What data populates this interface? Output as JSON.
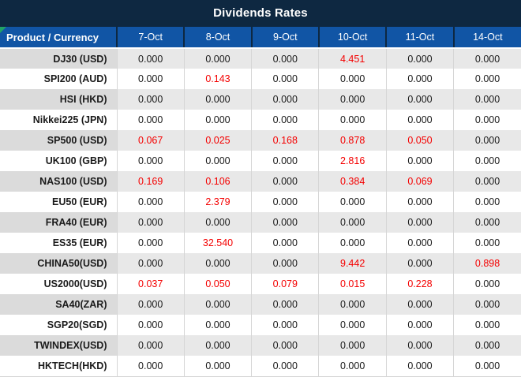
{
  "title": "Dividends Rates",
  "colors": {
    "title_bg": "#0E2841",
    "header_bg": "#1155A5",
    "row_gray": "#E8E8E8",
    "row_gray_first": "#DBDBDB",
    "row_white": "#FFFFFF",
    "value_red": "#F40000",
    "text_dark": "#1A1A1A",
    "grid_line": "#D6D6D6",
    "corner_flag": "#21A366"
  },
  "table": {
    "product_header": "Product / Currency",
    "date_headers": [
      "7-Oct",
      "8-Oct",
      "9-Oct",
      "10-Oct",
      "11-Oct",
      "14-Oct"
    ],
    "rows": [
      {
        "product": "DJ30 (USD)",
        "values": [
          "0.000",
          "0.000",
          "0.000",
          "4.451",
          "0.000",
          "0.000"
        ],
        "red": [
          3
        ]
      },
      {
        "product": "SPI200 (AUD)",
        "values": [
          "0.000",
          "0.143",
          "0.000",
          "0.000",
          "0.000",
          "0.000"
        ],
        "red": [
          1
        ]
      },
      {
        "product": "HSI (HKD)",
        "values": [
          "0.000",
          "0.000",
          "0.000",
          "0.000",
          "0.000",
          "0.000"
        ],
        "red": []
      },
      {
        "product": "Nikkei225 (JPN)",
        "values": [
          "0.000",
          "0.000",
          "0.000",
          "0.000",
          "0.000",
          "0.000"
        ],
        "red": []
      },
      {
        "product": "SP500 (USD)",
        "values": [
          "0.067",
          "0.025",
          "0.168",
          "0.878",
          "0.050",
          "0.000"
        ],
        "red": [
          0,
          1,
          2,
          3,
          4
        ]
      },
      {
        "product": "UK100 (GBP)",
        "values": [
          "0.000",
          "0.000",
          "0.000",
          "2.816",
          "0.000",
          "0.000"
        ],
        "red": [
          3
        ]
      },
      {
        "product": "NAS100 (USD)",
        "values": [
          "0.169",
          "0.106",
          "0.000",
          "0.384",
          "0.069",
          "0.000"
        ],
        "red": [
          0,
          1,
          3,
          4
        ]
      },
      {
        "product": "EU50 (EUR)",
        "values": [
          "0.000",
          "2.379",
          "0.000",
          "0.000",
          "0.000",
          "0.000"
        ],
        "red": [
          1
        ]
      },
      {
        "product": "FRA40 (EUR)",
        "values": [
          "0.000",
          "0.000",
          "0.000",
          "0.000",
          "0.000",
          "0.000"
        ],
        "red": []
      },
      {
        "product": "ES35 (EUR)",
        "values": [
          "0.000",
          "32.540",
          "0.000",
          "0.000",
          "0.000",
          "0.000"
        ],
        "red": [
          1
        ]
      },
      {
        "product": "CHINA50(USD)",
        "values": [
          "0.000",
          "0.000",
          "0.000",
          "9.442",
          "0.000",
          "0.898"
        ],
        "red": [
          3,
          5
        ]
      },
      {
        "product": "US2000(USD)",
        "values": [
          "0.037",
          "0.050",
          "0.079",
          "0.015",
          "0.228",
          "0.000"
        ],
        "red": [
          0,
          1,
          2,
          3,
          4
        ]
      },
      {
        "product": "SA40(ZAR)",
        "values": [
          "0.000",
          "0.000",
          "0.000",
          "0.000",
          "0.000",
          "0.000"
        ],
        "red": []
      },
      {
        "product": "SGP20(SGD)",
        "values": [
          "0.000",
          "0.000",
          "0.000",
          "0.000",
          "0.000",
          "0.000"
        ],
        "red": []
      },
      {
        "product": "TWINDEX(USD)",
        "values": [
          "0.000",
          "0.000",
          "0.000",
          "0.000",
          "0.000",
          "0.000"
        ],
        "red": []
      },
      {
        "product": "HKTECH(HKD)",
        "values": [
          "0.000",
          "0.000",
          "0.000",
          "0.000",
          "0.000",
          "0.000"
        ],
        "red": []
      }
    ]
  }
}
